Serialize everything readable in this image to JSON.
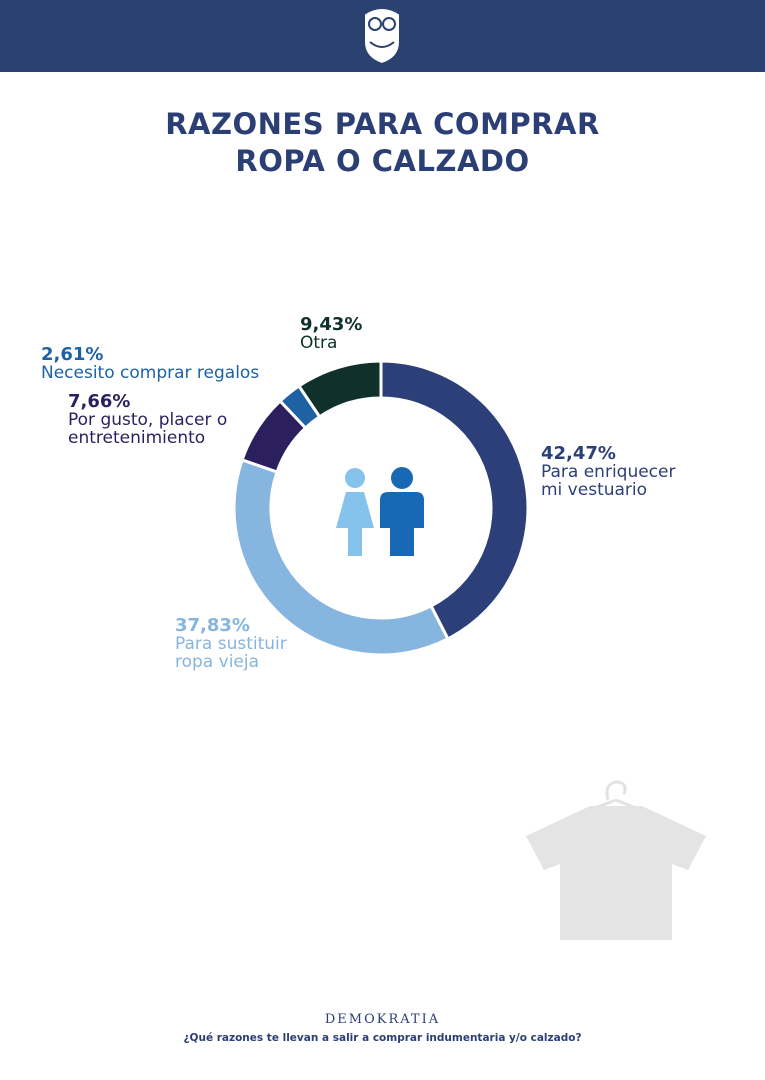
{
  "chart_data": {
    "type": "pie",
    "donut": true,
    "title": "RAZONES PARA COMPRAR ROPA O CALZADO",
    "categories": [
      "Para enriquecer mi vestuario",
      "Para sustituir ropa vieja",
      "Por gusto, placer o entretenimiento",
      "Necesito comprar regalos",
      "Otra"
    ],
    "values": [
      42.47,
      37.83,
      7.66,
      2.61,
      9.43
    ],
    "value_labels": [
      "42,47%",
      "37,83%",
      "7,66%",
      "2,61%",
      "9,43%"
    ],
    "colors": [
      "#2c3f78",
      "#86b5df",
      "#2b1f5e",
      "#1f62a3",
      "#10302b"
    ]
  },
  "footer": {
    "brand": "DEMOKRATIA",
    "question": "¿Qué razones te llevan a salir a comprar indumentaria y/o calzado?"
  }
}
